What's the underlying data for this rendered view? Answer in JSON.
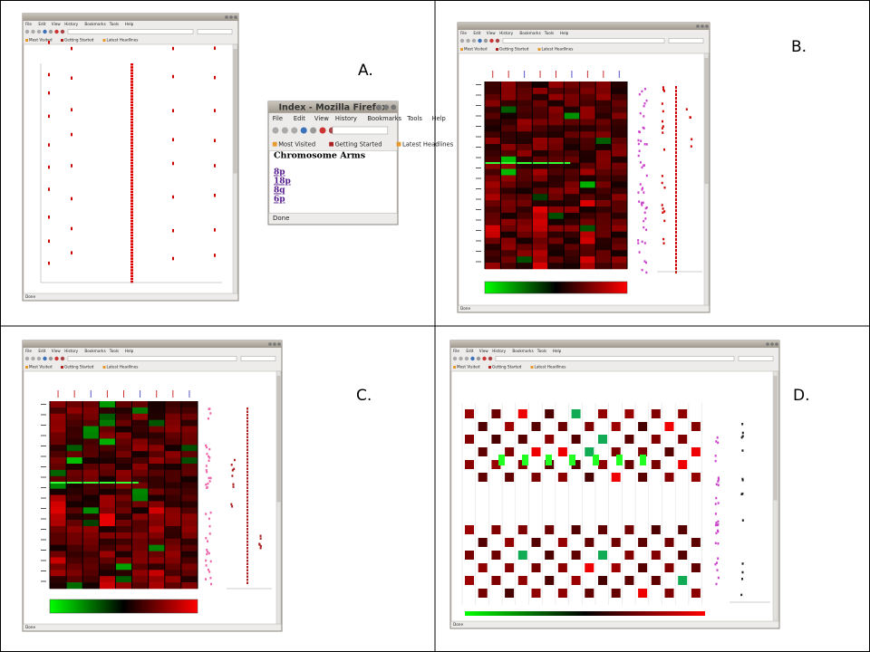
{
  "panels": [
    {
      "label": "A."
    },
    {
      "label": "B."
    },
    {
      "label": "C."
    },
    {
      "label": "D."
    }
  ],
  "browser": {
    "menu": [
      "File",
      "Edit",
      "View",
      "History",
      "Bookmarks",
      "Tools",
      "Help"
    ],
    "bookmarks": [
      "Most Visited",
      "Getting Started",
      "Latest Headlines"
    ],
    "status": "Done"
  },
  "popup": {
    "title": "Index - Mozilla Firefox",
    "heading": "Chromosome Arms",
    "links": [
      "8p",
      "18p",
      "8q",
      "6p"
    ]
  }
}
